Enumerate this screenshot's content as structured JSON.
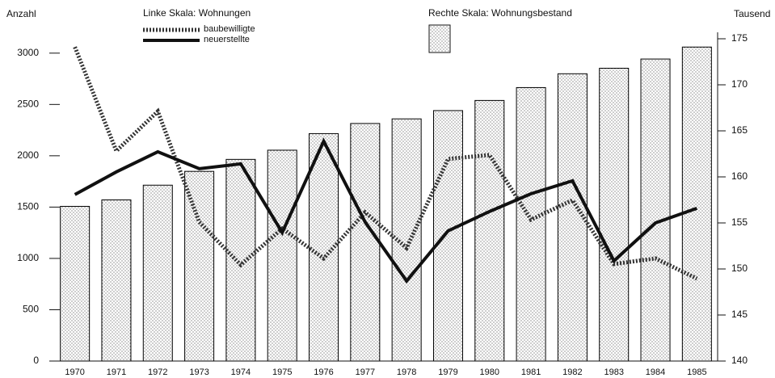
{
  "chart_data": {
    "type": "combo",
    "y_axis_label": "Anzahl",
    "y2_axis_label": "Tausend",
    "left_legend_title": "Linke Skala:  Wohnungen",
    "right_legend_title": "Rechte Skala:  Wohnungsbestand",
    "categories": [
      "1970",
      "1971",
      "1972",
      "1973",
      "1974",
      "1975",
      "1976",
      "1977",
      "1978",
      "1979",
      "1980",
      "1981",
      "1982",
      "1983",
      "1984",
      "1985"
    ],
    "series": [
      {
        "type": "bar",
        "axis": "y2",
        "color": "#000000",
        "values": [
          156.8,
          157.5,
          159.1,
          160.6,
          161.9,
          162.9,
          164.7,
          165.8,
          166.3,
          167.2,
          168.3,
          169.7,
          171.2,
          171.8,
          172.8,
          174.1
        ]
      },
      {
        "type": "line",
        "name": "baubewilligte",
        "color": "#333333",
        "style": "dotted",
        "values": [
          3060,
          2047,
          2433,
          1354,
          937,
          1291,
          1000,
          1449,
          1102,
          1969,
          2008,
          1378,
          1567,
          945,
          1000,
          803
        ]
      },
      {
        "type": "line",
        "name": "neuerstellte",
        "color": "#111111",
        "style": "solid",
        "values": [
          1622,
          1843,
          2039,
          1874,
          1921,
          1252,
          2142,
          1354,
          780,
          1268,
          1457,
          1630,
          1756,
          976,
          1346,
          1488
        ]
      }
    ],
    "ylim": [
      0,
      3140
    ],
    "yticks": [
      0,
      500,
      1000,
      1500,
      2000,
      2500,
      3000
    ],
    "y2lim": [
      140,
      175
    ],
    "y2ticks": [
      140,
      145,
      150,
      155,
      160,
      165,
      170,
      175
    ]
  }
}
